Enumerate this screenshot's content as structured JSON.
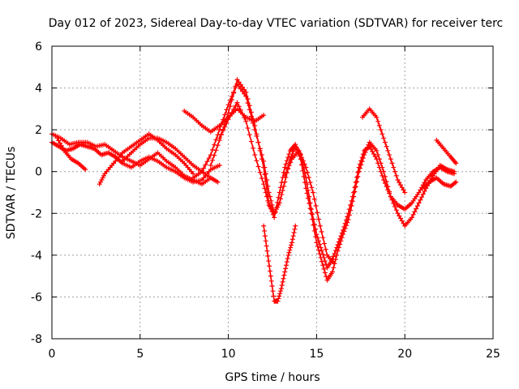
{
  "chart_data": {
    "type": "scatter",
    "title": "Day 012 of 2023, Sidereal Day-to-day VTEC variation (SDTVAR) for receiver terc",
    "xlabel": "GPS time / hours",
    "ylabel": "SDTVAR / TECUs",
    "xlim": [
      0,
      25
    ],
    "ylim": [
      -8,
      6
    ],
    "xticks": [
      "0",
      "5",
      "10",
      "15",
      "20",
      "25"
    ],
    "yticks": [
      "-8",
      "-6",
      "-4",
      "-2",
      "0",
      "2",
      "4",
      "6"
    ],
    "grid": true,
    "legend": "none",
    "marker": "plus",
    "color": "#ff0000",
    "series": [
      {
        "x": [
          0.0,
          0.4,
          0.8,
          1.2,
          1.6,
          2.0,
          2.4,
          2.8,
          3.2,
          3.6,
          4.0,
          4.5,
          5.0,
          5.5,
          6.0,
          6.5,
          7.0,
          7.5,
          8.0,
          8.5,
          9.0,
          9.5
        ],
        "y": [
          1.4,
          1.2,
          1.0,
          1.1,
          1.3,
          1.2,
          1.1,
          0.8,
          0.9,
          0.7,
          0.4,
          0.2,
          0.5,
          0.7,
          0.5,
          0.2,
          0.0,
          -0.3,
          -0.5,
          -0.4,
          0.1,
          0.3
        ]
      },
      {
        "x": [
          0.0,
          0.5,
          1.0,
          1.5,
          2.0,
          2.5,
          3.0,
          3.5,
          4.0,
          4.5,
          5.0,
          5.5,
          6.0,
          6.5,
          7.0,
          7.5,
          8.0,
          8.5,
          9.0
        ],
        "y": [
          1.8,
          1.6,
          1.3,
          1.4,
          1.4,
          1.2,
          1.3,
          1.0,
          0.7,
          0.5,
          0.3,
          0.6,
          0.9,
          0.5,
          0.2,
          -0.2,
          -0.4,
          -0.6,
          -0.3
        ]
      },
      {
        "x": [
          0.3,
          0.7,
          1.1,
          1.5,
          1.9
        ],
        "y": [
          1.6,
          1.0,
          0.6,
          0.4,
          0.1
        ]
      },
      {
        "x": [
          2.7,
          3.0,
          3.5,
          4.0,
          4.5,
          5.0,
          5.5,
          6.0,
          6.5,
          7.0,
          7.5,
          8.0
        ],
        "y": [
          -0.6,
          -0.1,
          0.4,
          0.9,
          1.2,
          1.5,
          1.8,
          1.5,
          1.1,
          0.8,
          0.4,
          -0.1
        ]
      },
      {
        "x": [
          4.0,
          4.5,
          5.0,
          5.5,
          6.0,
          6.5,
          7.0,
          7.5,
          8.0,
          8.5,
          9.0,
          9.4
        ],
        "y": [
          0.5,
          0.9,
          1.3,
          1.6,
          1.6,
          1.4,
          1.1,
          0.7,
          0.3,
          0.0,
          -0.3,
          -0.5
        ]
      },
      {
        "x": [
          8.0,
          8.5,
          9.0,
          9.5,
          10.0,
          10.5,
          11.0,
          11.5,
          12.0,
          12.3,
          12.6,
          12.9,
          13.2,
          13.5,
          13.8,
          14.1,
          14.4,
          14.7,
          15.0,
          15.3,
          15.6,
          15.9,
          16.2,
          16.5,
          16.8,
          17.1,
          17.4,
          17.7,
          18.0,
          18.4,
          18.8,
          19.2,
          19.6,
          20.0,
          20.4,
          20.8,
          21.2,
          21.6,
          22.0,
          22.4,
          22.8
        ],
        "y": [
          -0.3,
          0.0,
          0.8,
          2.0,
          3.2,
          4.2,
          3.6,
          2.0,
          0.5,
          -1.0,
          -2.0,
          -1.5,
          -0.5,
          0.6,
          1.2,
          0.8,
          -0.3,
          -1.8,
          -3.0,
          -3.8,
          -4.6,
          -4.2,
          -3.5,
          -2.8,
          -2.0,
          -1.0,
          0.2,
          1.0,
          1.2,
          0.6,
          -0.4,
          -1.2,
          -1.6,
          -1.8,
          -1.5,
          -1.0,
          -0.4,
          0.0,
          0.2,
          0.0,
          -0.1
        ]
      },
      {
        "x": [
          9.0,
          9.5,
          10.0,
          10.5,
          11.0,
          11.5,
          12.0,
          12.3,
          12.6,
          12.9,
          13.2,
          13.5,
          13.8,
          14.1,
          14.4,
          14.7,
          15.0,
          15.3,
          15.6,
          15.9,
          16.2,
          16.5,
          16.8,
          17.1,
          17.4,
          17.7,
          18.0,
          18.4,
          18.8,
          19.2,
          19.6,
          20.0,
          20.4,
          20.8,
          21.2,
          21.6,
          22.0,
          22.4,
          22.8
        ],
        "y": [
          0.3,
          1.5,
          2.8,
          4.4,
          3.8,
          2.2,
          0.2,
          -1.5,
          -2.2,
          -1.0,
          0.2,
          1.0,
          1.3,
          0.6,
          -0.8,
          -2.0,
          -3.4,
          -4.3,
          -5.2,
          -4.8,
          -3.8,
          -3.0,
          -2.3,
          -1.2,
          0.0,
          0.8,
          1.4,
          1.0,
          0.0,
          -1.2,
          -2.0,
          -2.6,
          -2.2,
          -1.5,
          -0.8,
          -0.2,
          0.3,
          0.1,
          0.0
        ]
      },
      {
        "x": [
          7.5,
          8.0,
          8.5,
          9.0,
          9.5,
          10.0,
          10.5,
          11.0,
          11.5,
          12.0
        ],
        "y": [
          2.9,
          2.6,
          2.2,
          1.9,
          2.2,
          2.6,
          3.0,
          2.6,
          2.4,
          2.7
        ]
      },
      {
        "x": [
          9.5,
          10.0,
          10.5,
          11.0,
          11.5,
          12.0,
          12.3,
          12.6
        ],
        "y": [
          1.6,
          2.5,
          3.3,
          2.4,
          0.8,
          -0.6,
          -1.6,
          -2.0
        ]
      },
      {
        "x": [
          12.0,
          12.2,
          12.4,
          12.6,
          12.8,
          13.0,
          13.2,
          13.4,
          13.6,
          13.8
        ],
        "y": [
          -2.6,
          -3.8,
          -5.0,
          -6.2,
          -6.2,
          -5.6,
          -4.8,
          -4.0,
          -3.4,
          -2.6
        ]
      },
      {
        "x": [
          13.2,
          13.6,
          14.0,
          14.4,
          14.8,
          15.2,
          15.6,
          16.0
        ],
        "y": [
          -0.2,
          0.6,
          1.0,
          0.2,
          -1.0,
          -2.6,
          -4.0,
          -4.4
        ]
      },
      {
        "x": [
          17.6,
          18.0,
          18.4,
          18.8,
          19.2,
          19.6,
          20.0
        ],
        "y": [
          2.6,
          3.0,
          2.6,
          1.6,
          0.6,
          -0.4,
          -1.0
        ]
      },
      {
        "x": [
          21.8,
          22.2,
          22.6,
          22.9
        ],
        "y": [
          1.5,
          1.1,
          0.7,
          0.4
        ]
      },
      {
        "x": [
          21.0,
          21.4,
          21.8,
          22.2,
          22.6,
          22.9
        ],
        "y": [
          -0.8,
          -0.5,
          -0.3,
          -0.6,
          -0.7,
          -0.5
        ]
      }
    ]
  }
}
